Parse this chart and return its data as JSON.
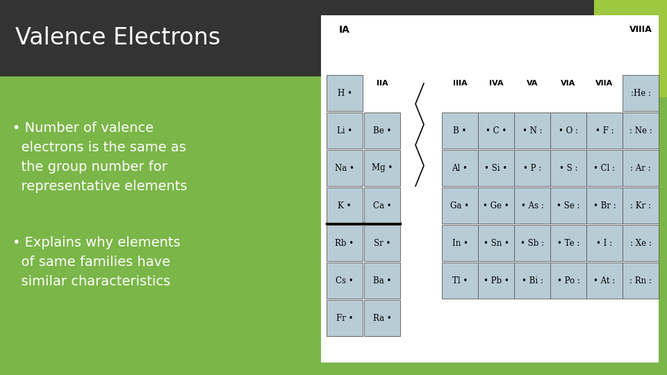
{
  "title": "Valence Electrons",
  "bullet1_lines": [
    "• Number of valence",
    "  electrons is the same as",
    "  the group number for",
    "  representative elements"
  ],
  "bullet2_lines": [
    "• Explains why elements",
    "  of same families have",
    "  similar characteristics"
  ],
  "bg_green": "#7ab648",
  "bg_green_dark": "#5c9432",
  "title_bar_color": "#333333",
  "bright_green": "#9dc840",
  "title_color": "#ffffff",
  "bullet_color": "#ffffff",
  "cell_color": "#b8ccd6",
  "cell_edge": "#888888",
  "group_headers": [
    "IA",
    "IIA",
    "IIIA",
    "IVA",
    "VA",
    "VIA",
    "VIIA",
    "VIIIA"
  ],
  "elem_table": [
    [
      0,
      0,
      "H",
      "H •"
    ],
    [
      0,
      7,
      "He",
      ":He :"
    ],
    [
      1,
      0,
      "Li",
      "Li •"
    ],
    [
      1,
      1,
      "Be",
      "Be •"
    ],
    [
      1,
      2,
      "B",
      "B •"
    ],
    [
      1,
      3,
      "C",
      "• C •"
    ],
    [
      1,
      4,
      "N",
      "• N :"
    ],
    [
      1,
      5,
      "O",
      "• O :"
    ],
    [
      1,
      6,
      "F",
      "• F :"
    ],
    [
      1,
      7,
      "Ne",
      ": Ne :"
    ],
    [
      2,
      0,
      "Na",
      "Na •"
    ],
    [
      2,
      1,
      "Mg",
      "Mg •"
    ],
    [
      2,
      2,
      "Al",
      "Al •"
    ],
    [
      2,
      3,
      "Si",
      "• Si •"
    ],
    [
      2,
      4,
      "P",
      "• P :"
    ],
    [
      2,
      5,
      "S",
      "• S :"
    ],
    [
      2,
      6,
      "Cl",
      "• Cl :"
    ],
    [
      2,
      7,
      "Ar",
      ": Ar :"
    ],
    [
      3,
      0,
      "K",
      "K •"
    ],
    [
      3,
      1,
      "Ca",
      "Ca •"
    ],
    [
      3,
      2,
      "Ga",
      "Ga •"
    ],
    [
      3,
      3,
      "Ge",
      "• Ge •"
    ],
    [
      3,
      4,
      "As",
      "• As :"
    ],
    [
      3,
      5,
      "Se",
      "• Se :"
    ],
    [
      3,
      6,
      "Br",
      "• Br :"
    ],
    [
      3,
      7,
      "Kr",
      ": Kr :"
    ],
    [
      4,
      0,
      "Rb",
      "Rb •"
    ],
    [
      4,
      1,
      "Sr",
      "Sr •"
    ],
    [
      4,
      2,
      "In",
      "In •"
    ],
    [
      4,
      3,
      "Sn",
      "• Sn •"
    ],
    [
      4,
      4,
      "Sb",
      "• Sb :"
    ],
    [
      4,
      5,
      "Te",
      "• Te :"
    ],
    [
      4,
      6,
      "I",
      "• I :"
    ],
    [
      4,
      7,
      "Xe",
      ": Xe :"
    ],
    [
      5,
      0,
      "Cs",
      "Cs •"
    ],
    [
      5,
      1,
      "Ba",
      "Ba •"
    ],
    [
      5,
      2,
      "Tl",
      "Tl •"
    ],
    [
      5,
      3,
      "Pb",
      "• Pb •"
    ],
    [
      5,
      4,
      "Bi",
      "• Bi :"
    ],
    [
      5,
      5,
      "Po",
      "• Po :"
    ],
    [
      5,
      6,
      "At",
      "• At :"
    ],
    [
      5,
      7,
      "Rn",
      ": Rn :"
    ],
    [
      6,
      0,
      "Fr",
      "Fr •"
    ],
    [
      6,
      1,
      "Ra",
      "Ra •"
    ]
  ]
}
